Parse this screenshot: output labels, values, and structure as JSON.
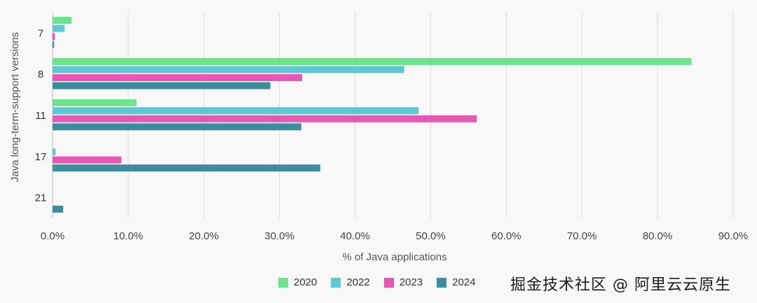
{
  "chart_data": {
    "type": "bar",
    "orientation": "horizontal",
    "title": "",
    "xlabel": "% of Java applications",
    "ylabel": "Java long-term-support versions",
    "categories": [
      "7",
      "8",
      "11",
      "17",
      "21"
    ],
    "xlim": [
      0,
      90
    ],
    "xticks": [
      "0.0%",
      "10.0%",
      "20.0%",
      "30.0%",
      "40.0%",
      "50.0%",
      "60.0%",
      "70.0%",
      "80.0%",
      "90.0%"
    ],
    "grid": true,
    "legend_position": "bottom-center",
    "series": [
      {
        "name": "2020",
        "color": "#6de38c",
        "values": [
          2.5,
          84.5,
          11.1,
          0,
          0
        ]
      },
      {
        "name": "2022",
        "color": "#5bc8d2",
        "values": [
          1.6,
          46.5,
          48.4,
          0.4,
          0
        ]
      },
      {
        "name": "2023",
        "color": "#e855b5",
        "values": [
          0.3,
          33.0,
          56.1,
          9.1,
          0
        ]
      },
      {
        "name": "2024",
        "color": "#3d8da1",
        "values": [
          0.2,
          28.8,
          32.9,
          35.4,
          1.4
        ]
      }
    ]
  },
  "watermark": "掘金技术社区 @ 阿里云云原生"
}
